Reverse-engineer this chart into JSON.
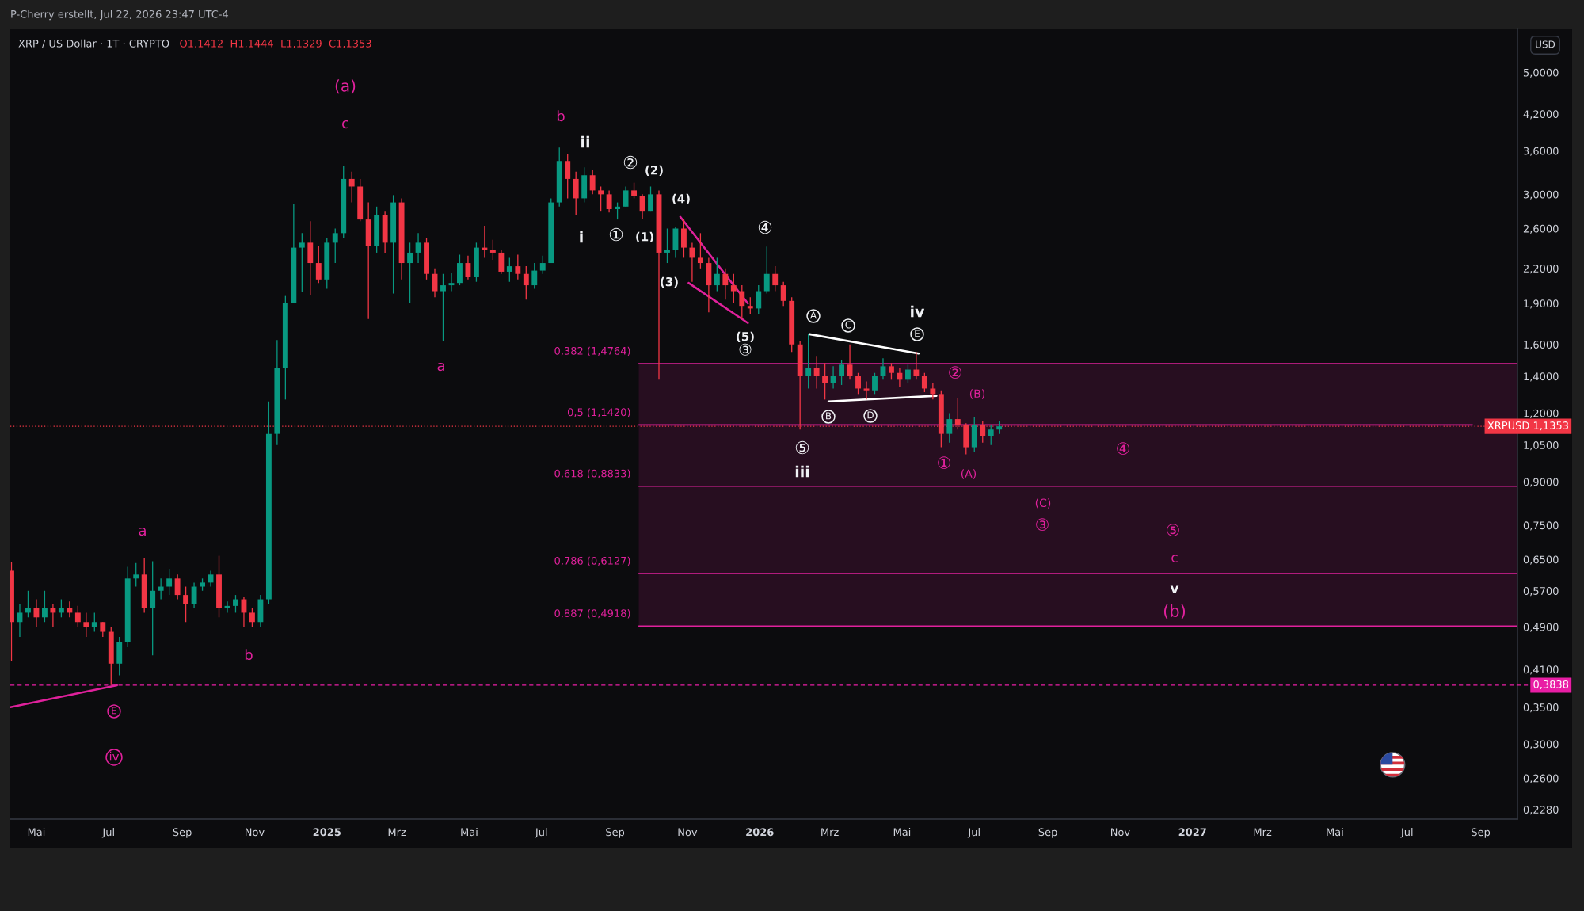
{
  "chart_data": {
    "type": "candlestick",
    "title": "XRP / US Dollar · 1T · CRYPTO",
    "subtitle": "O1,1412  H1,1444  L1,1329  C1,1353",
    "ylabel": "USD",
    "log": true,
    "xlim": [
      "2024-04-09",
      "2027-10-02"
    ],
    "xticks": [
      {
        "value": "2024-05-01",
        "label": "Mai"
      },
      {
        "value": "2024-07-01",
        "label": "Jul"
      },
      {
        "value": "2024-09-01",
        "label": "Sep"
      },
      {
        "value": "2024-11-01",
        "label": "Nov"
      },
      {
        "value": "2025-01-01",
        "label": "2025"
      },
      {
        "value": "2025-03-01",
        "label": "Mrz"
      },
      {
        "value": "2025-05-01",
        "label": "Mai"
      },
      {
        "value": "2025-07-01",
        "label": "Jul"
      },
      {
        "value": "2025-09-01",
        "label": "Sep"
      },
      {
        "value": "2025-11-01",
        "label": "Nov"
      },
      {
        "value": "2026-01-01",
        "label": "2026"
      },
      {
        "value": "2026-03-01",
        "label": "Mrz"
      },
      {
        "value": "2026-05-01",
        "label": "Mai"
      },
      {
        "value": "2026-07-01",
        "label": "Jul"
      },
      {
        "value": "2026-09-01",
        "label": "Sep"
      },
      {
        "value": "2026-11-01",
        "label": "Nov"
      },
      {
        "value": "2027-01-01",
        "label": "2027"
      },
      {
        "value": "2027-03-01",
        "label": "Mrz"
      },
      {
        "value": "2027-05-01",
        "label": "Mai"
      },
      {
        "value": "2027-07-01",
        "label": "Jul"
      },
      {
        "value": "2027-09-01",
        "label": "Sep"
      }
    ],
    "ylim": [
      0.219,
      6.01
    ],
    "yticks": [
      {
        "value": 0.228,
        "label": "0,2280"
      },
      {
        "value": 0.26,
        "label": "0,2600"
      },
      {
        "value": 0.3,
        "label": "0,3000"
      },
      {
        "value": 0.35,
        "label": "0,3500"
      },
      {
        "value": 0.41,
        "label": "0,4100"
      },
      {
        "value": 0.49,
        "label": "0,4900"
      },
      {
        "value": 0.57,
        "label": "0,5700"
      },
      {
        "value": 0.65,
        "label": "0,6500"
      },
      {
        "value": 0.75,
        "label": "0,7500"
      },
      {
        "value": 0.9,
        "label": "0,9000"
      },
      {
        "value": 1.05,
        "label": "1,0500"
      },
      {
        "value": 1.2,
        "label": "1,2000"
      },
      {
        "value": 1.4,
        "label": "1,4000"
      },
      {
        "value": 1.6,
        "label": "1,6000"
      },
      {
        "value": 1.9,
        "label": "1,9000"
      },
      {
        "value": 2.2,
        "label": "2,2000"
      },
      {
        "value": 2.6,
        "label": "2,6000"
      },
      {
        "value": 3.0,
        "label": "3,0000"
      },
      {
        "value": 3.6,
        "label": "3,6000"
      },
      {
        "value": 4.2,
        "label": "4,2000"
      },
      {
        "value": 5.0,
        "label": "5,0000"
      }
    ],
    "x": [
      "2024-04-10",
      "2024-04-17",
      "2024-04-24",
      "2024-05-01",
      "2024-05-08",
      "2024-05-15",
      "2024-05-22",
      "2024-05-29",
      "2024-06-05",
      "2024-06-12",
      "2024-06-19",
      "2024-06-26",
      "2024-07-03",
      "2024-07-10",
      "2024-07-17",
      "2024-07-24",
      "2024-07-31",
      "2024-08-07",
      "2024-08-14",
      "2024-08-21",
      "2024-08-28",
      "2024-09-04",
      "2024-09-11",
      "2024-09-18",
      "2024-09-25",
      "2024-10-02",
      "2024-10-09",
      "2024-10-16",
      "2024-10-23",
      "2024-10-30",
      "2024-11-06",
      "2024-11-13",
      "2024-11-20",
      "2024-11-27",
      "2024-12-04",
      "2024-12-11",
      "2024-12-18",
      "2024-12-25",
      "2025-01-01",
      "2025-01-08",
      "2025-01-15",
      "2025-01-22",
      "2025-01-29",
      "2025-02-05",
      "2025-02-12",
      "2025-02-19",
      "2025-02-26",
      "2025-03-05",
      "2025-03-12",
      "2025-03-19",
      "2025-03-26",
      "2025-04-02",
      "2025-04-09",
      "2025-04-16",
      "2025-04-23",
      "2025-04-30",
      "2025-05-07",
      "2025-05-14",
      "2025-05-21",
      "2025-05-28",
      "2025-06-04",
      "2025-06-11",
      "2025-06-18",
      "2025-06-25",
      "2025-07-02",
      "2025-07-09",
      "2025-07-16",
      "2025-07-23",
      "2025-07-30",
      "2025-08-06",
      "2025-08-13",
      "2025-08-20",
      "2025-08-27",
      "2025-09-03",
      "2025-09-10",
      "2025-09-17",
      "2025-09-24",
      "2025-10-01",
      "2025-10-08",
      "2025-10-15",
      "2025-10-22",
      "2025-10-29",
      "2025-11-05",
      "2025-11-12",
      "2025-11-19",
      "2025-11-26",
      "2025-12-03",
      "2025-12-10",
      "2025-12-17",
      "2025-12-24",
      "2025-12-31",
      "2026-01-07",
      "2026-01-14",
      "2026-01-21",
      "2026-01-28",
      "2026-02-04",
      "2026-02-11",
      "2026-02-18",
      "2026-02-25",
      "2026-03-04",
      "2026-03-11",
      "2026-03-18",
      "2026-03-25",
      "2026-04-01",
      "2026-04-08",
      "2026-04-15",
      "2026-04-22",
      "2026-04-29",
      "2026-05-06",
      "2026-05-13",
      "2026-05-20",
      "2026-05-27",
      "2026-06-03",
      "2026-06-10",
      "2026-06-17",
      "2026-06-24",
      "2026-07-01",
      "2026-07-08",
      "2026-07-15",
      "2026-07-22"
    ],
    "ohlc": [
      [
        0.62,
        0.643,
        0.425,
        0.5
      ],
      [
        0.5,
        0.54,
        0.47,
        0.52
      ],
      [
        0.52,
        0.57,
        0.51,
        0.53
      ],
      [
        0.53,
        0.55,
        0.49,
        0.51
      ],
      [
        0.51,
        0.57,
        0.5,
        0.53
      ],
      [
        0.53,
        0.54,
        0.49,
        0.52
      ],
      [
        0.52,
        0.55,
        0.51,
        0.53
      ],
      [
        0.53,
        0.545,
        0.51,
        0.52
      ],
      [
        0.52,
        0.535,
        0.49,
        0.5
      ],
      [
        0.5,
        0.52,
        0.47,
        0.49
      ],
      [
        0.49,
        0.52,
        0.48,
        0.5
      ],
      [
        0.5,
        0.5,
        0.47,
        0.48
      ],
      [
        0.48,
        0.49,
        0.384,
        0.42
      ],
      [
        0.42,
        0.47,
        0.4,
        0.46
      ],
      [
        0.46,
        0.63,
        0.45,
        0.6
      ],
      [
        0.6,
        0.64,
        0.58,
        0.61
      ],
      [
        0.61,
        0.655,
        0.52,
        0.53
      ],
      [
        0.53,
        0.645,
        0.435,
        0.57
      ],
      [
        0.57,
        0.6,
        0.55,
        0.58
      ],
      [
        0.58,
        0.625,
        0.56,
        0.6
      ],
      [
        0.6,
        0.61,
        0.55,
        0.56
      ],
      [
        0.56,
        0.58,
        0.5,
        0.54
      ],
      [
        0.54,
        0.59,
        0.53,
        0.58
      ],
      [
        0.58,
        0.6,
        0.57,
        0.59
      ],
      [
        0.59,
        0.62,
        0.58,
        0.61
      ],
      [
        0.61,
        0.66,
        0.51,
        0.53
      ],
      [
        0.53,
        0.545,
        0.52,
        0.535
      ],
      [
        0.535,
        0.56,
        0.52,
        0.55
      ],
      [
        0.55,
        0.555,
        0.49,
        0.52
      ],
      [
        0.52,
        0.53,
        0.49,
        0.5
      ],
      [
        0.5,
        0.56,
        0.49,
        0.55
      ],
      [
        0.55,
        1.26,
        0.54,
        1.1
      ],
      [
        1.1,
        1.63,
        1.05,
        1.45
      ],
      [
        1.45,
        1.96,
        1.27,
        1.9
      ],
      [
        1.9,
        2.88,
        1.9,
        2.4
      ],
      [
        2.4,
        2.55,
        1.99,
        2.45
      ],
      [
        2.45,
        2.68,
        1.97,
        2.25
      ],
      [
        2.25,
        2.42,
        2.07,
        2.1
      ],
      [
        2.1,
        2.5,
        2.02,
        2.45
      ],
      [
        2.45,
        2.6,
        2.25,
        2.55
      ],
      [
        2.55,
        3.38,
        2.5,
        3.2
      ],
      [
        3.2,
        3.3,
        2.9,
        3.1
      ],
      [
        3.1,
        3.2,
        2.68,
        2.7
      ],
      [
        2.7,
        2.9,
        1.78,
        2.42
      ],
      [
        2.42,
        2.85,
        2.35,
        2.75
      ],
      [
        2.75,
        2.8,
        2.35,
        2.45
      ],
      [
        2.45,
        2.99,
        1.98,
        2.9
      ],
      [
        2.9,
        2.95,
        2.1,
        2.25
      ],
      [
        2.25,
        2.45,
        1.9,
        2.35
      ],
      [
        2.35,
        2.55,
        2.25,
        2.45
      ],
      [
        2.45,
        2.5,
        2.1,
        2.15
      ],
      [
        2.15,
        2.2,
        1.95,
        2.0
      ],
      [
        2.0,
        2.15,
        1.62,
        2.05
      ],
      [
        2.05,
        2.16,
        2.0,
        2.07
      ],
      [
        2.07,
        2.33,
        2.05,
        2.25
      ],
      [
        2.25,
        2.32,
        2.1,
        2.12
      ],
      [
        2.12,
        2.45,
        2.08,
        2.4
      ],
      [
        2.4,
        2.63,
        2.3,
        2.38
      ],
      [
        2.38,
        2.48,
        2.28,
        2.35
      ],
      [
        2.35,
        2.38,
        2.15,
        2.17
      ],
      [
        2.17,
        2.3,
        2.08,
        2.22
      ],
      [
        2.22,
        2.33,
        2.1,
        2.15
      ],
      [
        2.15,
        2.22,
        1.93,
        2.05
      ],
      [
        2.05,
        2.25,
        2.02,
        2.18
      ],
      [
        2.18,
        2.32,
        2.15,
        2.25
      ],
      [
        2.25,
        2.95,
        2.25,
        2.9
      ],
      [
        2.9,
        3.65,
        2.85,
        3.45
      ],
      [
        3.45,
        3.55,
        2.95,
        3.2
      ],
      [
        3.2,
        3.3,
        2.75,
        2.95
      ],
      [
        2.95,
        3.36,
        2.9,
        3.25
      ],
      [
        3.25,
        3.33,
        3.0,
        3.05
      ],
      [
        3.05,
        3.1,
        2.8,
        3.0
      ],
      [
        3.0,
        3.05,
        2.78,
        2.82
      ],
      [
        2.82,
        2.9,
        2.7,
        2.85
      ],
      [
        2.85,
        3.1,
        2.85,
        3.05
      ],
      [
        3.05,
        3.15,
        2.95,
        2.98
      ],
      [
        2.98,
        3.0,
        2.7,
        2.8
      ],
      [
        2.8,
        3.1,
        2.8,
        3.0
      ],
      [
        3.0,
        3.05,
        1.38,
        2.35
      ],
      [
        2.35,
        2.6,
        2.25,
        2.38
      ],
      [
        2.38,
        2.62,
        2.3,
        2.6
      ],
      [
        2.6,
        2.71,
        2.3,
        2.4
      ],
      [
        2.4,
        2.45,
        2.08,
        2.3
      ],
      [
        2.3,
        2.55,
        2.2,
        2.25
      ],
      [
        2.25,
        2.3,
        1.83,
        2.05
      ],
      [
        2.05,
        2.3,
        2.0,
        2.15
      ],
      [
        2.15,
        2.2,
        1.93,
        2.05
      ],
      [
        2.05,
        2.15,
        1.9,
        2.0
      ],
      [
        2.0,
        2.05,
        1.78,
        1.88
      ],
      [
        1.88,
        1.95,
        1.82,
        1.86
      ],
      [
        1.86,
        2.05,
        1.82,
        2.0
      ],
      [
        2.0,
        2.41,
        1.98,
        2.15
      ],
      [
        2.15,
        2.22,
        2.0,
        2.05
      ],
      [
        2.05,
        2.08,
        1.88,
        1.92
      ],
      [
        1.92,
        1.95,
        1.55,
        1.6
      ],
      [
        1.6,
        1.62,
        1.12,
        1.4
      ],
      [
        1.4,
        1.67,
        1.33,
        1.45
      ],
      [
        1.45,
        1.52,
        1.33,
        1.4
      ],
      [
        1.4,
        1.48,
        1.27,
        1.36
      ],
      [
        1.36,
        1.46,
        1.33,
        1.4
      ],
      [
        1.4,
        1.5,
        1.35,
        1.47
      ],
      [
        1.47,
        1.6,
        1.38,
        1.4
      ],
      [
        1.4,
        1.42,
        1.3,
        1.33
      ],
      [
        1.33,
        1.37,
        1.27,
        1.32
      ],
      [
        1.32,
        1.42,
        1.3,
        1.4
      ],
      [
        1.4,
        1.51,
        1.38,
        1.46
      ],
      [
        1.46,
        1.48,
        1.38,
        1.42
      ],
      [
        1.42,
        1.45,
        1.34,
        1.38
      ],
      [
        1.38,
        1.47,
        1.36,
        1.44
      ],
      [
        1.44,
        1.55,
        1.38,
        1.4
      ],
      [
        1.4,
        1.42,
        1.31,
        1.33
      ],
      [
        1.33,
        1.36,
        1.27,
        1.3
      ],
      [
        1.3,
        1.32,
        1.04,
        1.1
      ],
      [
        1.1,
        1.2,
        1.06,
        1.17
      ],
      [
        1.17,
        1.28,
        1.12,
        1.14
      ],
      [
        1.14,
        1.15,
        1.01,
        1.04
      ],
      [
        1.04,
        1.18,
        1.02,
        1.14
      ],
      [
        1.14,
        1.16,
        1.06,
        1.09
      ],
      [
        1.09,
        1.14,
        1.05,
        1.12
      ],
      [
        1.12,
        1.16,
        1.1,
        1.1353
      ]
    ],
    "colors": [
      "#f23645",
      "#089981",
      "#089981",
      "#f23645",
      "#089981",
      "#f23645",
      "#089981",
      "#f23645",
      "#f23645",
      "#f23645",
      "#089981",
      "#f23645",
      "#f23645",
      "#089981",
      "#089981",
      "#089981",
      "#f23645",
      "#089981",
      "#089981",
      "#089981",
      "#f23645",
      "#f23645",
      "#089981",
      "#089981",
      "#089981",
      "#f23645",
      "#089981",
      "#089981",
      "#f23645",
      "#f23645",
      "#089981",
      "#089981",
      "#089981",
      "#089981",
      "#089981",
      "#089981",
      "#f23645",
      "#f23645",
      "#089981",
      "#089981",
      "#089981",
      "#f23645",
      "#f23645",
      "#f23645",
      "#089981",
      "#f23645",
      "#089981",
      "#f23645",
      "#089981",
      "#089981",
      "#f23645",
      "#f23645",
      "#089981",
      "#089981",
      "#089981",
      "#f23645",
      "#089981",
      "#f23645",
      "#f23645",
      "#f23645",
      "#089981",
      "#f23645",
      "#f23645",
      "#089981",
      "#089981",
      "#089981",
      "#089981",
      "#f23645",
      "#f23645",
      "#089981",
      "#f23645",
      "#f23645",
      "#f23645",
      "#089981",
      "#089981",
      "#f23645",
      "#f23645",
      "#089981",
      "#f23645",
      "#089981",
      "#089981",
      "#f23645",
      "#f23645",
      "#f23645",
      "#f23645",
      "#089981",
      "#f23645",
      "#f23645",
      "#f23645",
      "#f23645",
      "#089981",
      "#089981",
      "#f23645",
      "#f23645",
      "#f23645",
      "#f23645",
      "#089981",
      "#f23645",
      "#f23645",
      "#089981",
      "#089981",
      "#f23645",
      "#f23645",
      "#f23645",
      "#089981",
      "#089981",
      "#f23645",
      "#f23645",
      "#089981",
      "#f23645",
      "#f23645",
      "#f23645",
      "#f23645",
      "#089981",
      "#f23645",
      "#f23645",
      "#089981",
      "#f23645",
      "#089981",
      "#089981"
    ],
    "series": [
      {
        "type": "line",
        "name": "0,382 (1,4764)",
        "color": "#e0219c",
        "x": [
          "2025-09-21",
          "2027-10-02"
        ],
        "values": [
          1.4764,
          1.4764
        ],
        "lower": [
          0.4918,
          0.4918
        ],
        "upper": [
          1.4764,
          1.4764
        ]
      },
      {
        "type": "line",
        "name": "0,5 (1,1420)",
        "color": "#e0219c",
        "x": [
          "2025-09-21",
          "2027-08-25"
        ],
        "values": [
          1.142,
          1.142
        ]
      },
      {
        "type": "line",
        "name": "0,618 (0,8833)",
        "color": "#e0219c",
        "x": [
          "2025-09-21",
          "2027-10-02"
        ],
        "values": [
          0.8833,
          0.8833
        ]
      },
      {
        "type": "line",
        "name": "0,786 (0,6127)",
        "color": "#e0219c",
        "x": [
          "2025-09-21",
          "2027-10-02"
        ],
        "values": [
          0.6127,
          0.6127
        ]
      },
      {
        "type": "line",
        "name": "0,887 (0,4918)",
        "color": "#e0219c",
        "x": [
          "2025-09-21",
          "2027-10-02"
        ],
        "values": [
          0.4918,
          0.4918
        ]
      },
      {
        "type": "line",
        "color": "#e0219c",
        "x": [
          "2024-04-09",
          "2024-07-08"
        ],
        "values": [
          0.35,
          0.3838
        ]
      },
      {
        "type": "line",
        "color": "#e0219c",
        "x": [
          "2025-10-26",
          "2025-12-22"
        ],
        "values": [
          2.73,
          1.9
        ]
      },
      {
        "type": "line",
        "color": "#e0219c",
        "x": [
          "2025-11-02",
          "2025-12-22"
        ],
        "values": [
          2.07,
          1.75
        ]
      },
      {
        "type": "line",
        "color": "#ffffff",
        "x": [
          "2026-02-12",
          "2026-05-15"
        ],
        "values": [
          1.67,
          1.54
        ]
      },
      {
        "type": "line",
        "color": "#ffffff",
        "x": [
          "2026-02-28",
          "2026-05-30"
        ],
        "values": [
          1.26,
          1.29
        ]
      }
    ],
    "ref_lines": [
      {
        "axis": "y",
        "value": 0.3838,
        "label": "0,3838",
        "color": "#e91ea5",
        "line_style": "dashed"
      },
      {
        "axis": "y",
        "value": 1.1353,
        "label": "XRPUSD 1,1353",
        "color": "#f23645",
        "line_style": "dotted"
      }
    ],
    "annotations": [
      "P-Cherry erstellt, Jul 22, 2026 23:47 UTC-4",
      "(a)",
      "c",
      "a",
      "b",
      "E",
      "iv",
      "a",
      "b",
      "②",
      "(B)",
      "①",
      "(A)",
      "④",
      "(C)",
      "③",
      "⑤",
      "c",
      "(b)",
      "v",
      "ii",
      "i",
      "②",
      "①",
      "(2)",
      "(1)",
      "(4)",
      "(3)",
      "④",
      "(5)",
      "③",
      "A",
      "C",
      "iv",
      "E",
      "B",
      "D",
      "⑤",
      "iii"
    ]
  }
}
